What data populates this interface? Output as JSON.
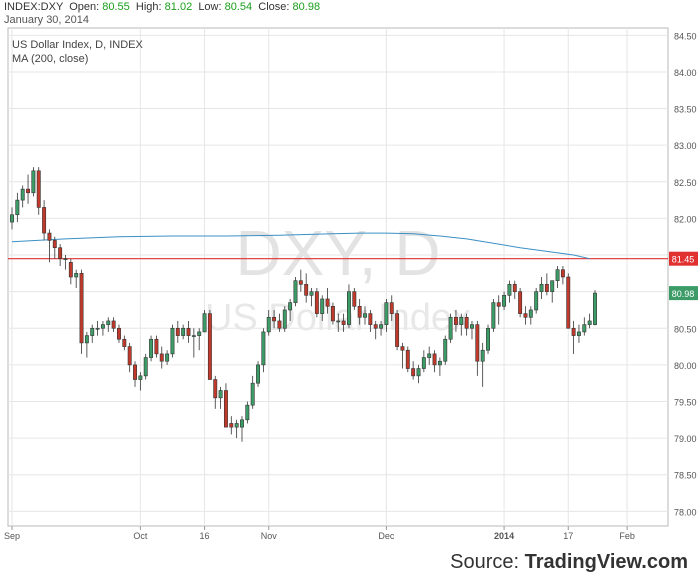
{
  "header": {
    "symbol": "INDEX:DXY",
    "open_label": "Open:",
    "open": "80.55",
    "high_label": "High:",
    "high": "81.02",
    "low_label": "Low:",
    "low": "80.54",
    "close_label": "Close:",
    "close": "80.98",
    "date": "January 30, 2014"
  },
  "legend": {
    "title": "US Dollar Index, D, INDEX",
    "ma": "MA (200, close)"
  },
  "watermark": {
    "symbol": "DXY, D",
    "name": "US Dollar Index"
  },
  "source": {
    "prefix": "Source:",
    "brand": "TradingView.com"
  },
  "colors": {
    "up": "#3c9b66",
    "down": "#c0392b",
    "ma_line": "#3b8fc4",
    "hline": "#e03030",
    "grid": "#e6e6e6",
    "last_label_bg": "#3c9b66"
  },
  "chart_data": {
    "type": "candlestick",
    "ylim": [
      77.8,
      84.6
    ],
    "y_ticks": [
      "84.50",
      "84.00",
      "83.50",
      "83.00",
      "82.50",
      "82.00",
      "81.50",
      "81.00",
      "80.50",
      "80.00",
      "79.50",
      "79.00",
      "78.50",
      "78.00"
    ],
    "x_ticks": [
      {
        "i": 0,
        "label": "Sep"
      },
      {
        "i": 24,
        "label": "Oct"
      },
      {
        "i": 36,
        "label": "16"
      },
      {
        "i": 48,
        "label": "Nov"
      },
      {
        "i": 70,
        "label": "Dec"
      },
      {
        "i": 92,
        "label": "2014"
      },
      {
        "i": 104,
        "label": "17"
      },
      {
        "i": 115,
        "label": "Feb"
      }
    ],
    "horizontal_line": {
      "value": 81.45,
      "label": "81.45"
    },
    "last_price_label": "80.98",
    "candles": [
      [
        81.95,
        82.15,
        81.85,
        82.05
      ],
      [
        82.05,
        82.35,
        81.95,
        82.25
      ],
      [
        82.25,
        82.45,
        82.15,
        82.4
      ],
      [
        82.4,
        82.6,
        82.2,
        82.35
      ],
      [
        82.35,
        82.7,
        82.3,
        82.65
      ],
      [
        82.65,
        82.7,
        82.05,
        82.15
      ],
      [
        82.15,
        82.25,
        81.7,
        81.8
      ],
      [
        81.8,
        81.85,
        81.4,
        81.7
      ],
      [
        81.7,
        81.75,
        81.45,
        81.6
      ],
      [
        81.6,
        81.65,
        81.35,
        81.45
      ],
      [
        81.45,
        81.5,
        81.3,
        81.45
      ],
      [
        81.4,
        81.45,
        81.1,
        81.2
      ],
      [
        81.2,
        81.3,
        81.05,
        81.25
      ],
      [
        81.25,
        81.3,
        80.15,
        80.3
      ],
      [
        80.3,
        80.45,
        80.1,
        80.4
      ],
      [
        80.4,
        80.55,
        80.3,
        80.5
      ],
      [
        80.5,
        80.6,
        80.4,
        80.5
      ],
      [
        80.5,
        80.6,
        80.4,
        80.55
      ],
      [
        80.55,
        80.65,
        80.45,
        80.6
      ],
      [
        80.6,
        80.65,
        80.45,
        80.5
      ],
      [
        80.5,
        80.55,
        80.3,
        80.35
      ],
      [
        80.35,
        80.4,
        80.2,
        80.25
      ],
      [
        80.25,
        80.3,
        79.9,
        80.0
      ],
      [
        80.0,
        80.05,
        79.7,
        79.8
      ],
      [
        79.8,
        79.9,
        79.65,
        79.85
      ],
      [
        79.85,
        80.15,
        79.8,
        80.1
      ],
      [
        80.1,
        80.4,
        80.05,
        80.35
      ],
      [
        80.35,
        80.4,
        80.1,
        80.15
      ],
      [
        80.15,
        80.25,
        79.95,
        80.05
      ],
      [
        80.05,
        80.2,
        80.0,
        80.15
      ],
      [
        80.15,
        80.55,
        80.1,
        80.5
      ],
      [
        80.5,
        80.6,
        80.3,
        80.4
      ],
      [
        80.4,
        80.55,
        80.35,
        80.5
      ],
      [
        80.5,
        80.6,
        80.3,
        80.4
      ],
      [
        80.4,
        80.5,
        80.1,
        80.4
      ],
      [
        80.4,
        80.5,
        80.2,
        80.45
      ],
      [
        80.45,
        80.75,
        80.45,
        80.7
      ],
      [
        80.7,
        80.75,
        79.8,
        79.8
      ],
      [
        79.8,
        79.85,
        79.4,
        79.55
      ],
      [
        79.55,
        79.7,
        79.4,
        79.65
      ],
      [
        79.65,
        79.75,
        79.15,
        79.15
      ],
      [
        79.2,
        79.3,
        79.05,
        79.15
      ],
      [
        79.15,
        79.25,
        79.0,
        79.2
      ],
      [
        79.15,
        79.3,
        78.95,
        79.25
      ],
      [
        79.25,
        79.5,
        79.2,
        79.45
      ],
      [
        79.45,
        79.85,
        79.4,
        79.75
      ],
      [
        79.75,
        80.05,
        79.7,
        80.0
      ],
      [
        80.0,
        80.5,
        79.9,
        80.45
      ],
      [
        80.45,
        80.75,
        80.4,
        80.65
      ],
      [
        80.65,
        80.75,
        80.5,
        80.6
      ],
      [
        80.6,
        80.7,
        80.45,
        80.5
      ],
      [
        80.5,
        80.8,
        80.45,
        80.75
      ],
      [
        80.75,
        80.9,
        80.6,
        80.85
      ],
      [
        80.85,
        81.2,
        80.8,
        81.15
      ],
      [
        81.15,
        81.3,
        81.0,
        81.1
      ],
      [
        81.1,
        81.25,
        80.85,
        80.95
      ],
      [
        80.95,
        81.05,
        80.8,
        81.0
      ],
      [
        81.0,
        81.05,
        80.65,
        80.7
      ],
      [
        80.7,
        80.95,
        80.6,
        80.9
      ],
      [
        80.9,
        81.05,
        80.7,
        80.8
      ],
      [
        80.8,
        80.85,
        80.55,
        80.6
      ],
      [
        80.6,
        80.7,
        80.45,
        80.6
      ],
      [
        80.6,
        80.7,
        80.45,
        80.55
      ],
      [
        80.55,
        81.1,
        80.5,
        81.0
      ],
      [
        81.0,
        81.05,
        80.75,
        80.8
      ],
      [
        80.8,
        80.9,
        80.55,
        80.65
      ],
      [
        80.65,
        80.8,
        80.55,
        80.7
      ],
      [
        80.7,
        80.75,
        80.45,
        80.55
      ],
      [
        80.55,
        80.6,
        80.35,
        80.5
      ],
      [
        80.5,
        80.6,
        80.4,
        80.55
      ],
      [
        80.55,
        80.9,
        80.45,
        80.85
      ],
      [
        80.85,
        80.95,
        80.6,
        80.7
      ],
      [
        80.7,
        80.75,
        80.2,
        80.25
      ],
      [
        80.25,
        80.3,
        79.95,
        80.2
      ],
      [
        80.2,
        80.25,
        79.9,
        79.95
      ],
      [
        79.95,
        80.05,
        79.8,
        79.85
      ],
      [
        79.85,
        80.0,
        79.75,
        79.95
      ],
      [
        79.95,
        80.2,
        79.9,
        80.1
      ],
      [
        80.1,
        80.25,
        80.0,
        80.15
      ],
      [
        80.15,
        80.2,
        79.9,
        80.0
      ],
      [
        80.0,
        80.1,
        79.85,
        80.05
      ],
      [
        80.05,
        80.4,
        80.0,
        80.35
      ],
      [
        80.35,
        80.7,
        80.3,
        80.65
      ],
      [
        80.65,
        80.75,
        80.45,
        80.55
      ],
      [
        80.55,
        80.7,
        80.4,
        80.65
      ],
      [
        80.65,
        80.7,
        80.4,
        80.5
      ],
      [
        80.5,
        80.6,
        80.35,
        80.55
      ],
      [
        80.55,
        80.6,
        79.85,
        80.05
      ],
      [
        80.05,
        80.3,
        79.7,
        80.2
      ],
      [
        80.2,
        80.55,
        80.15,
        80.5
      ],
      [
        80.5,
        80.9,
        80.45,
        80.85
      ],
      [
        80.85,
        80.95,
        80.55,
        80.8
      ],
      [
        80.8,
        81.0,
        80.75,
        80.95
      ],
      [
        80.95,
        81.15,
        80.85,
        81.1
      ],
      [
        81.1,
        81.15,
        80.9,
        81.0
      ],
      [
        81.0,
        81.05,
        80.65,
        80.7
      ],
      [
        80.7,
        80.8,
        80.55,
        80.65
      ],
      [
        80.65,
        80.8,
        80.55,
        80.75
      ],
      [
        80.75,
        81.05,
        80.7,
        81.0
      ],
      [
        81.0,
        81.2,
        80.9,
        81.1
      ],
      [
        81.1,
        81.25,
        80.95,
        81.0
      ],
      [
        81.0,
        81.15,
        80.85,
        81.15
      ],
      [
        81.15,
        81.35,
        81.05,
        81.3
      ],
      [
        81.3,
        81.35,
        81.1,
        81.2
      ],
      [
        81.2,
        81.25,
        80.55,
        80.5
      ],
      [
        80.5,
        80.6,
        80.15,
        80.4
      ],
      [
        80.4,
        80.55,
        80.3,
        80.45
      ],
      [
        80.45,
        80.65,
        80.4,
        80.55
      ],
      [
        80.55,
        80.7,
        80.5,
        80.6
      ],
      [
        80.55,
        81.02,
        80.54,
        80.98
      ]
    ],
    "ma200": [
      [
        0,
        81.68
      ],
      [
        10,
        81.72
      ],
      [
        20,
        81.75
      ],
      [
        30,
        81.76
      ],
      [
        40,
        81.76
      ],
      [
        50,
        81.77
      ],
      [
        60,
        81.79
      ],
      [
        65,
        81.8
      ],
      [
        70,
        81.8
      ],
      [
        75,
        81.79
      ],
      [
        80,
        81.76
      ],
      [
        85,
        81.72
      ],
      [
        90,
        81.66
      ],
      [
        95,
        81.6
      ],
      [
        100,
        81.55
      ],
      [
        105,
        81.5
      ],
      [
        108,
        81.45
      ]
    ]
  }
}
